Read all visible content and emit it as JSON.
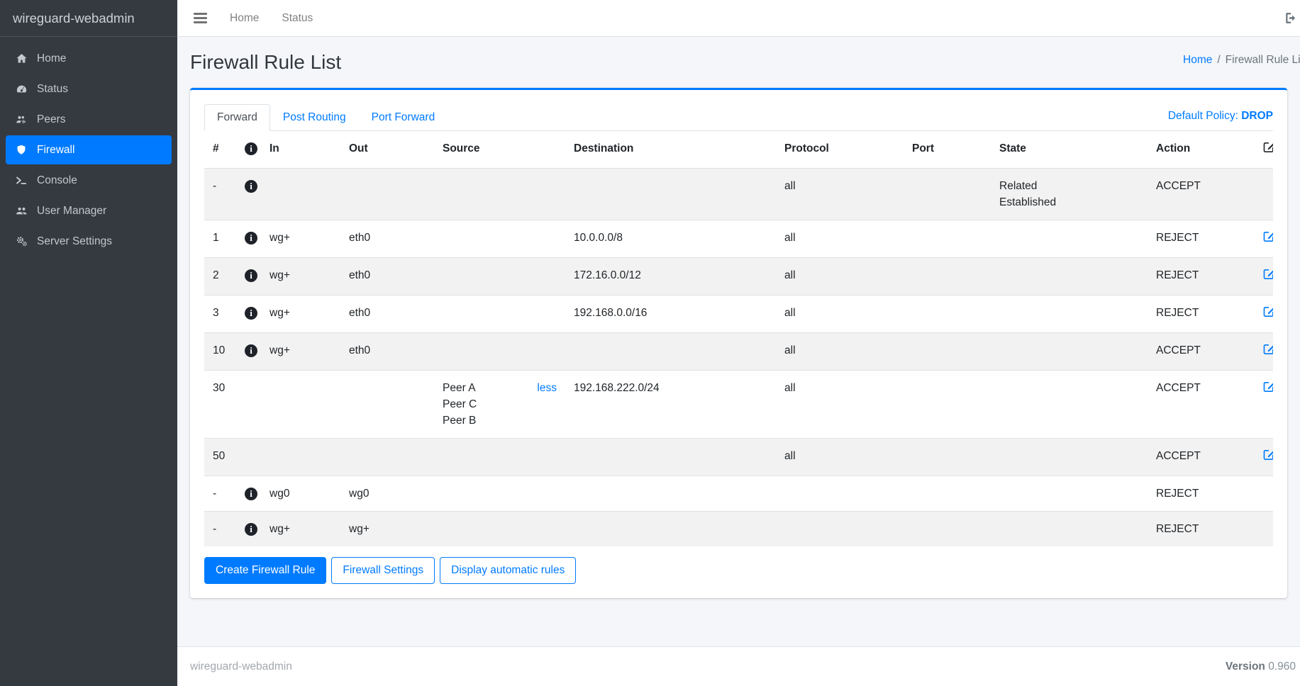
{
  "sidebar": {
    "brand": "wireguard-webadmin",
    "items": [
      {
        "label": "Home",
        "icon": "home-icon",
        "active": false
      },
      {
        "label": "Status",
        "icon": "gauge-icon",
        "active": false
      },
      {
        "label": "Peers",
        "icon": "users-gear-icon",
        "active": false
      },
      {
        "label": "Firewall",
        "icon": "shield-icon",
        "active": true
      },
      {
        "label": "Console",
        "icon": "terminal-icon",
        "active": false
      },
      {
        "label": "User Manager",
        "icon": "users-icon",
        "active": false
      },
      {
        "label": "Server Settings",
        "icon": "cogs-icon",
        "active": false
      }
    ]
  },
  "topbar": {
    "links": [
      "Home",
      "Status"
    ],
    "signout_icon": "sign-out-icon"
  },
  "page": {
    "title": "Firewall Rule List",
    "breadcrumb": {
      "home": "Home",
      "separator": "/",
      "current": "Firewall Rule List"
    }
  },
  "panel": {
    "tabs": [
      {
        "label": "Forward",
        "active": true
      },
      {
        "label": "Post Routing",
        "active": false
      },
      {
        "label": "Port Forward",
        "active": false
      }
    ],
    "default_policy_label": "Default Policy:",
    "default_policy_value": "DROP"
  },
  "table": {
    "headers": [
      "#",
      "info-icon",
      "In",
      "Out",
      "Source",
      "Destination",
      "Protocol",
      "Port",
      "State",
      "Action",
      "edit-icon"
    ],
    "rows": [
      {
        "num": "-",
        "info": true,
        "in_if": "",
        "out_if": "",
        "source": [],
        "less": "",
        "destination": "",
        "protocol": "all",
        "port": "",
        "state": [
          "Related",
          "Established"
        ],
        "action": "ACCEPT",
        "edit": false
      },
      {
        "num": "1",
        "info": true,
        "in_if": "wg+",
        "out_if": "eth0",
        "source": [],
        "less": "",
        "destination": "10.0.0.0/8",
        "protocol": "all",
        "port": "",
        "state": [],
        "action": "REJECT",
        "edit": true
      },
      {
        "num": "2",
        "info": true,
        "in_if": "wg+",
        "out_if": "eth0",
        "source": [],
        "less": "",
        "destination": "172.16.0.0/12",
        "protocol": "all",
        "port": "",
        "state": [],
        "action": "REJECT",
        "edit": true
      },
      {
        "num": "3",
        "info": true,
        "in_if": "wg+",
        "out_if": "eth0",
        "source": [],
        "less": "",
        "destination": "192.168.0.0/16",
        "protocol": "all",
        "port": "",
        "state": [],
        "action": "REJECT",
        "edit": true
      },
      {
        "num": "10",
        "info": true,
        "in_if": "wg+",
        "out_if": "eth0",
        "source": [],
        "less": "",
        "destination": "",
        "protocol": "all",
        "port": "",
        "state": [],
        "action": "ACCEPT",
        "edit": true
      },
      {
        "num": "30",
        "info": false,
        "in_if": "",
        "out_if": "",
        "source": [
          "Peer A",
          "Peer C",
          "Peer B"
        ],
        "less": "less",
        "destination": "192.168.222.0/24",
        "protocol": "all",
        "port": "",
        "state": [],
        "action": "ACCEPT",
        "edit": true
      },
      {
        "num": "50",
        "info": false,
        "in_if": "",
        "out_if": "",
        "source": [],
        "less": "",
        "destination": "",
        "protocol": "all",
        "port": "",
        "state": [],
        "action": "ACCEPT",
        "edit": true
      },
      {
        "num": "-",
        "info": true,
        "in_if": "wg0",
        "out_if": "wg0",
        "source": [],
        "less": "",
        "destination": "",
        "protocol": "",
        "port": "",
        "state": [],
        "action": "REJECT",
        "edit": false
      },
      {
        "num": "-",
        "info": true,
        "in_if": "wg+",
        "out_if": "wg+",
        "source": [],
        "less": "",
        "destination": "",
        "protocol": "",
        "port": "",
        "state": [],
        "action": "REJECT",
        "edit": false
      }
    ]
  },
  "buttons": [
    {
      "label": "Create Firewall Rule",
      "style": "primary"
    },
    {
      "label": "Firewall Settings",
      "style": "outline"
    },
    {
      "label": "Display automatic rules",
      "style": "outline"
    }
  ],
  "footer": {
    "left": "wireguard-webadmin",
    "version_label": "Version",
    "version_value": "0.960"
  },
  "colors": {
    "accent": "#007bff",
    "sidebar_bg": "#343a40",
    "content_bg": "#f4f6f9"
  }
}
